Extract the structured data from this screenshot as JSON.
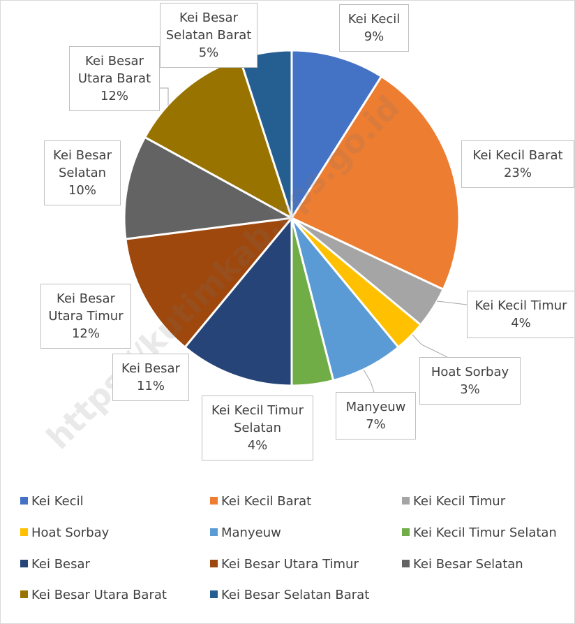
{
  "chart_data": {
    "type": "pie",
    "categories": [
      "Kei Kecil",
      "Kei Kecil Barat",
      "Kei Kecil Timur",
      "Hoat Sorbay",
      "Manyeuw",
      "Kei Kecil Timur Selatan",
      "Kei Besar",
      "Kei Besar Utara Timur",
      "Kei Besar Selatan",
      "Kei Besar Utara Barat",
      "Kei Besar Selatan Barat"
    ],
    "values": [
      9,
      23,
      4,
      3,
      7,
      4,
      11,
      12,
      10,
      12,
      5
    ],
    "value_labels": [
      "9%",
      "23%",
      "4%",
      "3%",
      "7%",
      "4%",
      "11%",
      "12%",
      "10%",
      "12%",
      "5%"
    ],
    "colors": [
      "#4472c4",
      "#ed7d31",
      "#a5a5a5",
      "#ffc000",
      "#5b9bd5",
      "#70ad47",
      "#264478",
      "#9e480e",
      "#636363",
      "#997300",
      "#255e91"
    ],
    "legend": "bottom"
  },
  "watermark": "https://kutimkab.bps.go.id"
}
